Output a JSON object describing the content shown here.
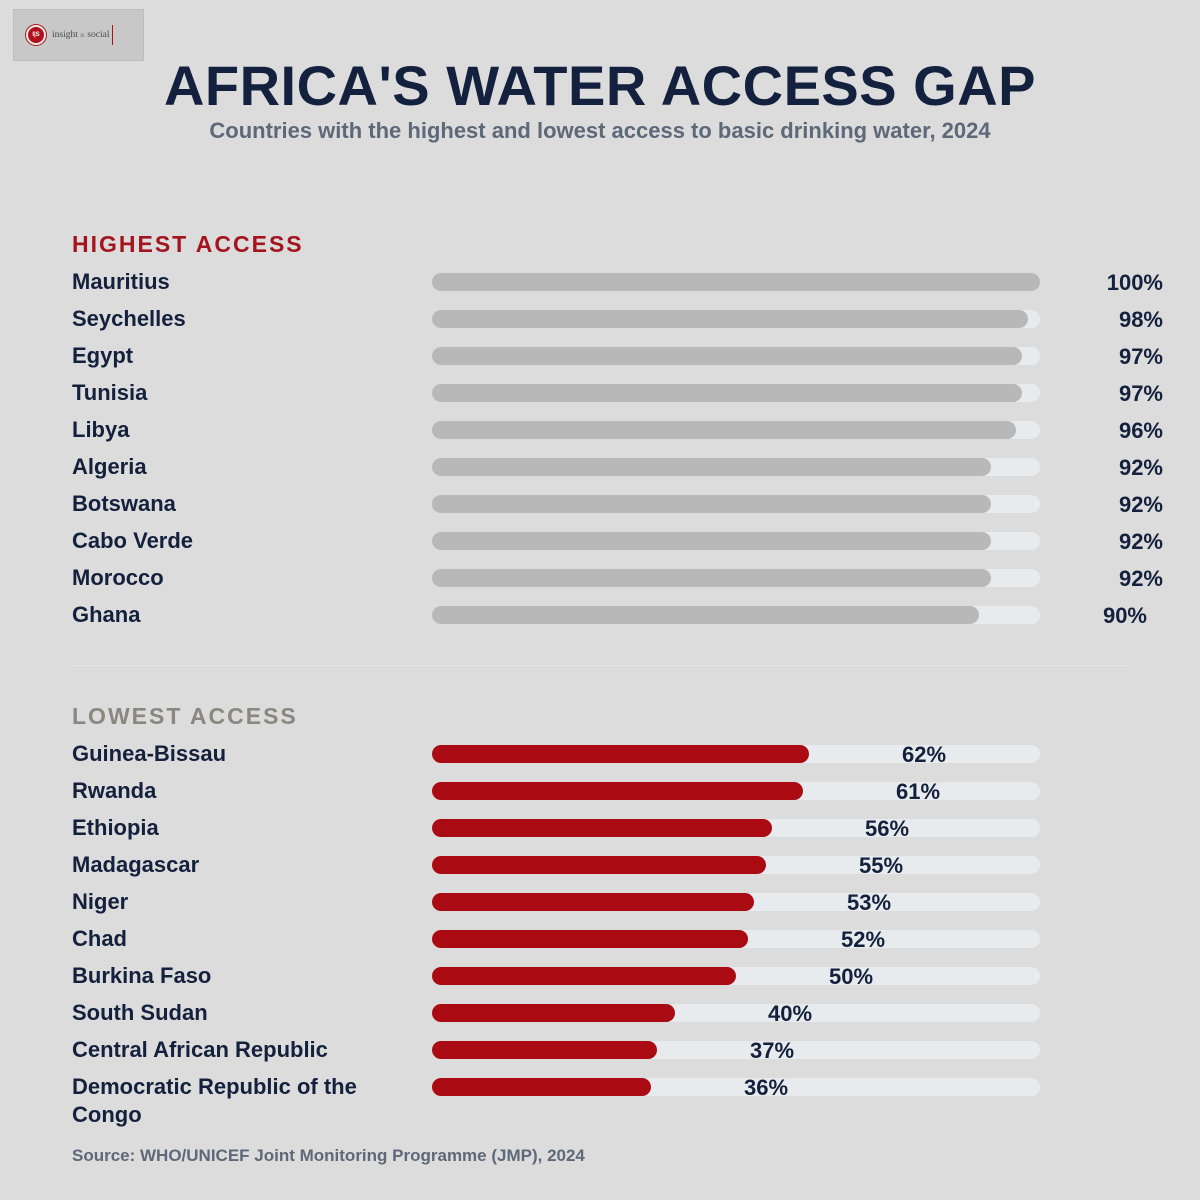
{
  "logo": {
    "badge": "I|S",
    "text_a": "insight",
    "text_amp": "&",
    "text_b": "social"
  },
  "title": "AFRICA'S WATER ACCESS GAP",
  "subtitle": "Countries with the highest and lowest access to basic drinking water, 2024",
  "source": "Source: WHO/UNICEF Joint Monitoring Programme (JMP), 2024",
  "colors": {
    "highest_bar": "#b8b8b8",
    "lowest_bar": "#aa0a12",
    "track": "#e8ebee",
    "title": "#13213f",
    "highest_heading": "#a3141e",
    "lowest_heading": "#8c8680"
  },
  "chart_data": [
    {
      "type": "bar",
      "orientation": "horizontal",
      "title": "HIGHEST ACCESS",
      "unit": "%",
      "xlim": [
        0,
        100
      ],
      "categories": [
        "Mauritius",
        "Seychelles",
        "Egypt",
        "Tunisia",
        "Libya",
        "Algeria",
        "Botswana",
        "Cabo Verde",
        "Morocco",
        "Ghana"
      ],
      "values": [
        100,
        98,
        97,
        97,
        96,
        92,
        92,
        92,
        92,
        90
      ],
      "labels": [
        "100%",
        "98%",
        "97%",
        "97%",
        "96%",
        "92%",
        "92%",
        "92%",
        "92%",
        "90%"
      ]
    },
    {
      "type": "bar",
      "orientation": "horizontal",
      "title": "LOWEST ACCESS",
      "unit": "%",
      "xlim": [
        0,
        100
      ],
      "categories": [
        "Guinea-Bissau",
        "Rwanda",
        "Ethiopia",
        "Madagascar",
        "Niger",
        "Chad",
        "Burkina Faso",
        "South Sudan",
        "Central African Republic",
        "Democratic Republic of the Congo"
      ],
      "values": [
        62,
        61,
        56,
        55,
        53,
        52,
        50,
        40,
        37,
        36
      ],
      "labels": [
        "62%",
        "61%",
        "56%",
        "55%",
        "53%",
        "52%",
        "50%",
        "40%",
        "37%",
        "36%"
      ]
    }
  ]
}
